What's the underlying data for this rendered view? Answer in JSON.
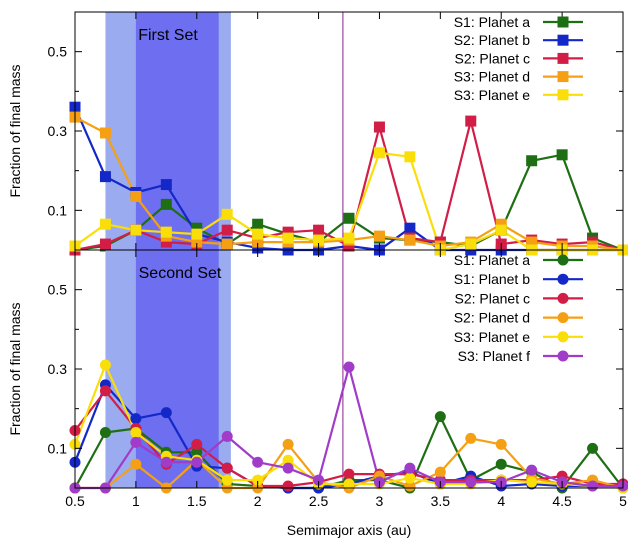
{
  "chart_data": [
    {
      "type": "line",
      "title": "First Set",
      "xlabel": "",
      "ylabel": "Fraction of final mass",
      "xlim": [
        0.5,
        5
      ],
      "ylim": [
        0,
        0.6
      ],
      "ytick_labels": [
        "0.1",
        "0.3",
        "0.5"
      ],
      "yticks": [
        0.1,
        0.3,
        0.5
      ],
      "x_tick_labels": [],
      "marker": "square",
      "shaded_regions": [
        {
          "x": [
            0.75,
            1.78
          ],
          "color": "#9aabf0"
        },
        {
          "x": [
            1.0,
            1.68
          ],
          "color": "#6d6ff0"
        }
      ],
      "vline": {
        "x": 2.7,
        "color": "#8a2090"
      },
      "legend_position": "top-right",
      "x": [
        0.5,
        0.75,
        1.0,
        1.25,
        1.5,
        1.75,
        2.0,
        2.25,
        2.5,
        2.75,
        3.0,
        3.25,
        3.5,
        3.75,
        4.0,
        4.25,
        4.5,
        4.75,
        5.0
      ],
      "series": [
        {
          "name": "S1: Planet a",
          "color": "#1e6e14",
          "values": [
            0.0,
            0.01,
            0.05,
            0.115,
            0.055,
            0.015,
            0.065,
            0.04,
            0.02,
            0.08,
            0.03,
            0.025,
            0.02,
            0.01,
            0.05,
            0.225,
            0.24,
            0.03,
            0.0
          ]
        },
        {
          "name": "S2: Planet b",
          "color": "#1428c8",
          "values": [
            0.36,
            0.185,
            0.145,
            0.165,
            0.04,
            0.02,
            0.005,
            0.0,
            0.0,
            0.01,
            0.0,
            0.055,
            0.0,
            0.0,
            0.0,
            0.0,
            0.0,
            0.0,
            0.0
          ]
        },
        {
          "name": "S2: Planet c",
          "color": "#d21e46",
          "values": [
            0.0,
            0.015,
            0.05,
            0.02,
            0.015,
            0.05,
            0.03,
            0.045,
            0.05,
            0.01,
            0.31,
            0.03,
            0.02,
            0.325,
            0.015,
            0.025,
            0.015,
            0.02,
            0.0
          ]
        },
        {
          "name": "S3: Planet d",
          "color": "#f5a014",
          "values": [
            0.335,
            0.295,
            0.135,
            0.035,
            0.02,
            0.015,
            0.02,
            0.02,
            0.02,
            0.025,
            0.035,
            0.025,
            0.01,
            0.02,
            0.065,
            0.02,
            0.01,
            0.01,
            0.0
          ]
        },
        {
          "name": "S3: Planet e",
          "color": "#fade0a",
          "values": [
            0.01,
            0.065,
            0.05,
            0.045,
            0.04,
            0.09,
            0.04,
            0.03,
            0.025,
            0.03,
            0.245,
            0.235,
            0.0,
            0.015,
            0.05,
            0.0,
            0.0,
            0.0,
            0.0
          ]
        }
      ]
    },
    {
      "type": "line",
      "title": "Second Set",
      "xlabel": "Semimajor axis (au)",
      "ylabel": "Fraction of final mass",
      "xlim": [
        0.5,
        5
      ],
      "ylim": [
        0,
        0.6
      ],
      "ytick_labels": [
        "0.1",
        "0.3",
        "0.5"
      ],
      "yticks": [
        0.1,
        0.3,
        0.5
      ],
      "x_tick_labels": [
        "0.5",
        "1",
        "1.5",
        "2",
        "2.5",
        "3",
        "3.5",
        "4",
        "4.5",
        "5"
      ],
      "xticks": [
        0.5,
        1,
        1.5,
        2,
        2.5,
        3,
        3.5,
        4,
        4.5,
        5
      ],
      "marker": "circle",
      "shaded_regions": [
        {
          "x": [
            0.75,
            1.78
          ],
          "color": "#9aabf0"
        },
        {
          "x": [
            1.0,
            1.68
          ],
          "color": "#6d6ff0"
        }
      ],
      "vline": {
        "x": 2.7,
        "color": "#8a2090"
      },
      "legend_position": "top-right",
      "x": [
        0.5,
        0.75,
        1.0,
        1.25,
        1.5,
        1.75,
        2.0,
        2.25,
        2.5,
        2.75,
        3.0,
        3.25,
        3.5,
        3.75,
        4.0,
        4.25,
        4.5,
        4.75,
        5.0
      ],
      "series": [
        {
          "name": "S1: Planet a",
          "color": "#1e6e14",
          "values": [
            0.0,
            0.14,
            0.15,
            0.09,
            0.09,
            0.01,
            0.005,
            0.0,
            0.0,
            0.02,
            0.02,
            0.0,
            0.18,
            0.02,
            0.06,
            0.04,
            0.0,
            0.1,
            0.0
          ]
        },
        {
          "name": "S1: Planet b",
          "color": "#1428c8",
          "values": [
            0.065,
            0.26,
            0.175,
            0.19,
            0.055,
            0.05,
            0.005,
            0.0,
            0.0,
            0.01,
            0.03,
            0.04,
            0.01,
            0.03,
            0.005,
            0.01,
            0.005,
            0.005,
            0.01
          ]
        },
        {
          "name": "S2: Planet c",
          "color": "#d21e46",
          "values": [
            0.145,
            0.245,
            0.15,
            0.06,
            0.11,
            0.05,
            0.005,
            0.005,
            0.015,
            0.035,
            0.035,
            0.035,
            0.02,
            0.02,
            0.02,
            0.02,
            0.03,
            0.01,
            0.01
          ]
        },
        {
          "name": "S2: Planet d",
          "color": "#f5a014",
          "values": [
            0.0,
            0.0,
            0.06,
            0.0,
            0.07,
            0.0,
            0.0,
            0.11,
            0.015,
            0.0,
            0.03,
            0.005,
            0.04,
            0.125,
            0.11,
            0.025,
            0.01,
            0.02,
            0.0
          ]
        },
        {
          "name": "S3: Planet e",
          "color": "#fade0a",
          "values": [
            0.11,
            0.31,
            0.14,
            0.08,
            0.07,
            0.02,
            0.02,
            0.07,
            0.01,
            0.01,
            0.01,
            0.025,
            0.01,
            0.01,
            0.02,
            0.015,
            0.01,
            0.005,
            0.0
          ]
        },
        {
          "name": "S3: Planet f",
          "color": "#a03cc8",
          "values": [
            0.0,
            0.0,
            0.115,
            0.065,
            0.065,
            0.13,
            0.065,
            0.05,
            0.02,
            0.305,
            0.015,
            0.05,
            0.015,
            0.015,
            0.015,
            0.045,
            0.015,
            0.005,
            0.005
          ]
        }
      ]
    }
  ]
}
